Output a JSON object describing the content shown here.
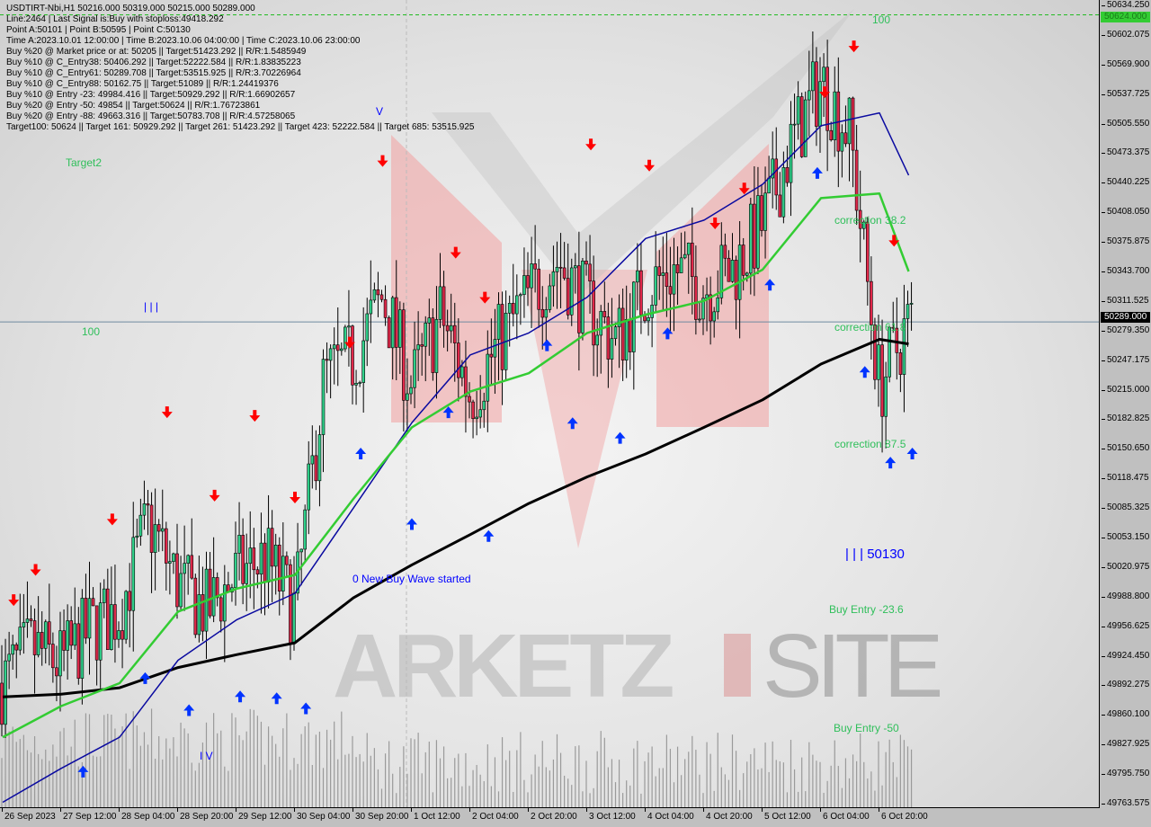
{
  "header": {
    "symbol_line": "USDTIRT-Nbi,H1  50216.000 50319.000 50215.000 50289.000",
    "info_lines": [
      "Line:2464 | Last Signal is:Buy with stoploss:49418.292",
      "Point A:50101 | Point B:50595 | Point C:50130",
      "Time A:2023.10.01 12:00:00 | Time B:2023.10.06 04:00:00 | Time C:2023.10.06 23:00:00",
      "Buy %20 @ Market price or at: 50205 || Target:51423.292 || R/R:1.5485949",
      "Buy %10 @ C_Entry38: 50406.292 || Target:52222.584 || R/R:1.83835223",
      "Buy %10 @ C_Entry61: 50289.708 || Target:53515.925 || R/R:3.70226964",
      "Buy %10 @ C_Entry88: 50162.75 || Target:51089 || R/R:1.24419376",
      "Buy %10 @ Entry -23: 49984.416 || Target:50929.292 || R/R:1.66902657",
      "Buy %20 @ Entry -50: 49854 || Target:50624 || R/R:1.76723861",
      "Buy %20 @ Entry -88: 49663.316 || Target:50783.708 || R/R:4.57258065",
      "Target100: 50624 || Target 161: 50929.292 || Target 261: 51423.292 || Target 423: 52222.584 || Target 685: 53515.925"
    ]
  },
  "annotations": {
    "target2": "Target2",
    "hundred_left": "100",
    "hundred_top": "100",
    "wave_marker_left": "| | |",
    "wave_marker_v": "V",
    "wave_marker_iv": "I V",
    "point_c_label": "| | | 50130",
    "new_wave": "0 New Buy Wave started",
    "correction_382": "correction 38.2",
    "correction_618": "correction 61.8",
    "correction_875": "correction 87.5",
    "buy_entry_236": "Buy Entry -23.6",
    "buy_entry_50": "Buy Entry -50",
    "watermark": "MARKETZISITE"
  },
  "price_tags": {
    "target": "50624.000",
    "current": "50289.000"
  },
  "colors": {
    "bull": "#2fd08a",
    "bear": "#e0284a",
    "ma_slow": "#000000",
    "ma_mid": "#0a0aa0",
    "ma_fast": "#33cc33",
    "sell_arrow": "#ff0000",
    "buy_arrow": "#0033ff",
    "zone": "#f2a0a0",
    "current_line": "#6f8aa0",
    "target_line": "#22bb22"
  },
  "chart_data": {
    "type": "candlestick",
    "title": "USDTIRT-Nbi,H1",
    "ylim": [
      49763.575,
      50634.25
    ],
    "y_ticks": [
      "50634.250",
      "50602.075",
      "50569.900",
      "50537.725",
      "50505.550",
      "50473.375",
      "50440.225",
      "50408.050",
      "50375.875",
      "50343.700",
      "50311.525",
      "50279.350",
      "50247.175",
      "50215.000",
      "50182.825",
      "50150.650",
      "50118.475",
      "50085.325",
      "50053.150",
      "50020.975",
      "49988.800",
      "49956.625",
      "49924.450",
      "49892.275",
      "49860.100",
      "49827.925",
      "49795.750",
      "49763.575"
    ],
    "x_ticks": [
      "26 Sep 2023",
      "27 Sep 12:00",
      "28 Sep 04:00",
      "28 Sep 20:00",
      "29 Sep 12:00",
      "30 Sep 04:00",
      "30 Sep 20:00",
      "1 Oct 12:00",
      "2 Oct 04:00",
      "2 Oct 20:00",
      "3 Oct 12:00",
      "4 Oct 04:00",
      "4 Oct 20:00",
      "5 Oct 12:00",
      "6 Oct 04:00",
      "6 Oct 20:00"
    ],
    "x_tick_times": [
      "2023-09-26 20:00",
      "2023-09-27 12:00",
      "2023-09-28 04:00",
      "2023-09-28 20:00",
      "2023-09-29 12:00",
      "2023-09-30 04:00",
      "2023-09-30 20:00",
      "2023-10-01 12:00",
      "2023-10-02 04:00",
      "2023-10-02 20:00",
      "2023-10-03 12:00",
      "2023-10-04 04:00",
      "2023-10-04 20:00",
      "2023-10-05 12:00",
      "2023-10-06 04:00",
      "2023-10-06 20:00"
    ],
    "close_times": [
      "2023-09-26 20:00",
      "2023-09-27 04:00",
      "2023-09-27 12:00",
      "2023-09-27 20:00",
      "2023-09-28 04:00",
      "2023-09-28 12:00",
      "2023-09-28 20:00",
      "2023-09-29 04:00",
      "2023-09-29 12:00",
      "2023-09-29 20:00",
      "2023-09-30 04:00",
      "2023-09-30 12:00",
      "2023-09-30 20:00",
      "2023-10-01 04:00",
      "2023-10-01 12:00",
      "2023-10-01 20:00",
      "2023-10-02 04:00",
      "2023-10-02 12:00",
      "2023-10-02 20:00",
      "2023-10-03 04:00",
      "2023-10-03 12:00",
      "2023-10-03 20:00",
      "2023-10-04 04:00",
      "2023-10-04 12:00",
      "2023-10-04 20:00",
      "2023-10-05 04:00",
      "2023-10-05 12:00",
      "2023-10-05 20:00",
      "2023-10-06 04:00",
      "2023-10-06 12:00",
      "2023-10-06 20:00",
      "2023-10-07 04:00"
    ],
    "close": [
      49895,
      49934,
      49915,
      49954,
      49974,
      50071,
      50003,
      49974,
      50013,
      50032,
      49974,
      50228,
      50248,
      50316,
      50218,
      50297,
      50209,
      50268,
      50316,
      50356,
      50307,
      50268,
      50326,
      50346,
      50326,
      50346,
      50395,
      50483,
      50552,
      50493,
      50218,
      50289
    ],
    "ma_times": [
      "2023-09-26 20:00",
      "2023-09-27 12:00",
      "2023-09-28 04:00",
      "2023-09-28 20:00",
      "2023-09-29 12:00",
      "2023-09-30 04:00",
      "2023-09-30 20:00",
      "2023-10-01 12:00",
      "2023-10-02 04:00",
      "2023-10-02 20:00",
      "2023-10-03 12:00",
      "2023-10-04 04:00",
      "2023-10-04 20:00",
      "2023-10-05 12:00",
      "2023-10-06 04:00",
      "2023-10-06 20:00",
      "2023-10-07 04:00"
    ],
    "series": [
      {
        "key": "ma_slow",
        "values": [
          49880,
          49883,
          49890,
          49912,
          49926,
          49939,
          49988,
          50024,
          50057,
          50091,
          50120,
          50145,
          50174,
          50204,
          50243,
          50270,
          50265
        ]
      },
      {
        "key": "ma_mid",
        "values": [
          49765,
          49802,
          49836,
          49920,
          49964,
          49993,
          50086,
          50179,
          50253,
          50277,
          50316,
          50380,
          50400,
          50439,
          50503,
          50517,
          50449
        ]
      },
      {
        "key": "ma_fast",
        "values": [
          49836,
          49870,
          49895,
          49973,
          49998,
          50013,
          50096,
          50174,
          50213,
          50233,
          50277,
          50297,
          50312,
          50346,
          50424,
          50429,
          50344
        ]
      }
    ],
    "sell_arrows": [
      {
        "t": "2023-09-26 23:00",
        "p": 49985
      },
      {
        "t": "2023-09-27 05:00",
        "p": 50018
      },
      {
        "t": "2023-09-28 02:00",
        "p": 50073
      },
      {
        "t": "2023-09-28 17:00",
        "p": 50190
      },
      {
        "t": "2023-09-29 06:00",
        "p": 50099
      },
      {
        "t": "2023-09-29 17:00",
        "p": 50186
      },
      {
        "t": "2023-09-30 04:00",
        "p": 50097
      },
      {
        "t": "2023-09-30 19:00",
        "p": 50266
      },
      {
        "t": "2023-10-01 04:00",
        "p": 50464
      },
      {
        "t": "2023-10-02 00:00",
        "p": 50364
      },
      {
        "t": "2023-10-02 08:00",
        "p": 50315
      },
      {
        "t": "2023-10-03 13:00",
        "p": 50482
      },
      {
        "t": "2023-10-04 05:00",
        "p": 50459
      },
      {
        "t": "2023-10-04 23:00",
        "p": 50396
      },
      {
        "t": "2023-10-05 07:00",
        "p": 50434
      },
      {
        "t": "2023-10-06 05:00",
        "p": 50539
      },
      {
        "t": "2023-10-06 13:00",
        "p": 50589
      },
      {
        "t": "2023-10-07 00:00",
        "p": 50377
      }
    ],
    "buy_arrows": [
      {
        "t": "2023-09-27 18:00",
        "p": 49799
      },
      {
        "t": "2023-09-28 11:00",
        "p": 49901
      },
      {
        "t": "2023-09-28 23:00",
        "p": 49866
      },
      {
        "t": "2023-09-29 13:00",
        "p": 49881
      },
      {
        "t": "2023-09-29 23:00",
        "p": 49879
      },
      {
        "t": "2023-09-30 07:00",
        "p": 49868
      },
      {
        "t": "2023-09-30 22:00",
        "p": 50146
      },
      {
        "t": "2023-10-01 12:00",
        "p": 50069
      },
      {
        "t": "2023-10-01 22:00",
        "p": 50191
      },
      {
        "t": "2023-10-02 09:00",
        "p": 50056
      },
      {
        "t": "2023-10-03 01:00",
        "p": 50264
      },
      {
        "t": "2023-10-03 08:00",
        "p": 50179
      },
      {
        "t": "2023-10-03 21:00",
        "p": 50163
      },
      {
        "t": "2023-10-04 10:00",
        "p": 50277
      },
      {
        "t": "2023-10-05 14:00",
        "p": 50330
      },
      {
        "t": "2023-10-06 03:00",
        "p": 50452
      },
      {
        "t": "2023-10-06 16:00",
        "p": 50235
      },
      {
        "t": "2023-10-06 23:00",
        "p": 50136
      },
      {
        "t": "2023-10-07 05:00",
        "p": 50146
      }
    ],
    "current_price": 50289,
    "target_price": 50624,
    "grid": false
  }
}
